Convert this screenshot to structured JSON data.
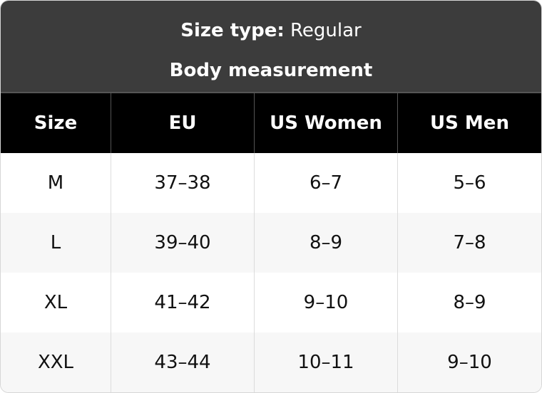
{
  "header": {
    "size_type_label": "Size type:",
    "size_type_value": "Regular",
    "subtitle": "Body measurement"
  },
  "table": {
    "columns": [
      "Size",
      "EU",
      "US Women",
      "US Men"
    ],
    "rows": [
      [
        "M",
        "37–38",
        "6–7",
        "5–6"
      ],
      [
        "L",
        "39–40",
        "8–9",
        "7–8"
      ],
      [
        "XL",
        "41–42",
        "9–10",
        "8–9"
      ],
      [
        "XXL",
        "43–44",
        "10–11",
        "9–10"
      ]
    ]
  }
}
